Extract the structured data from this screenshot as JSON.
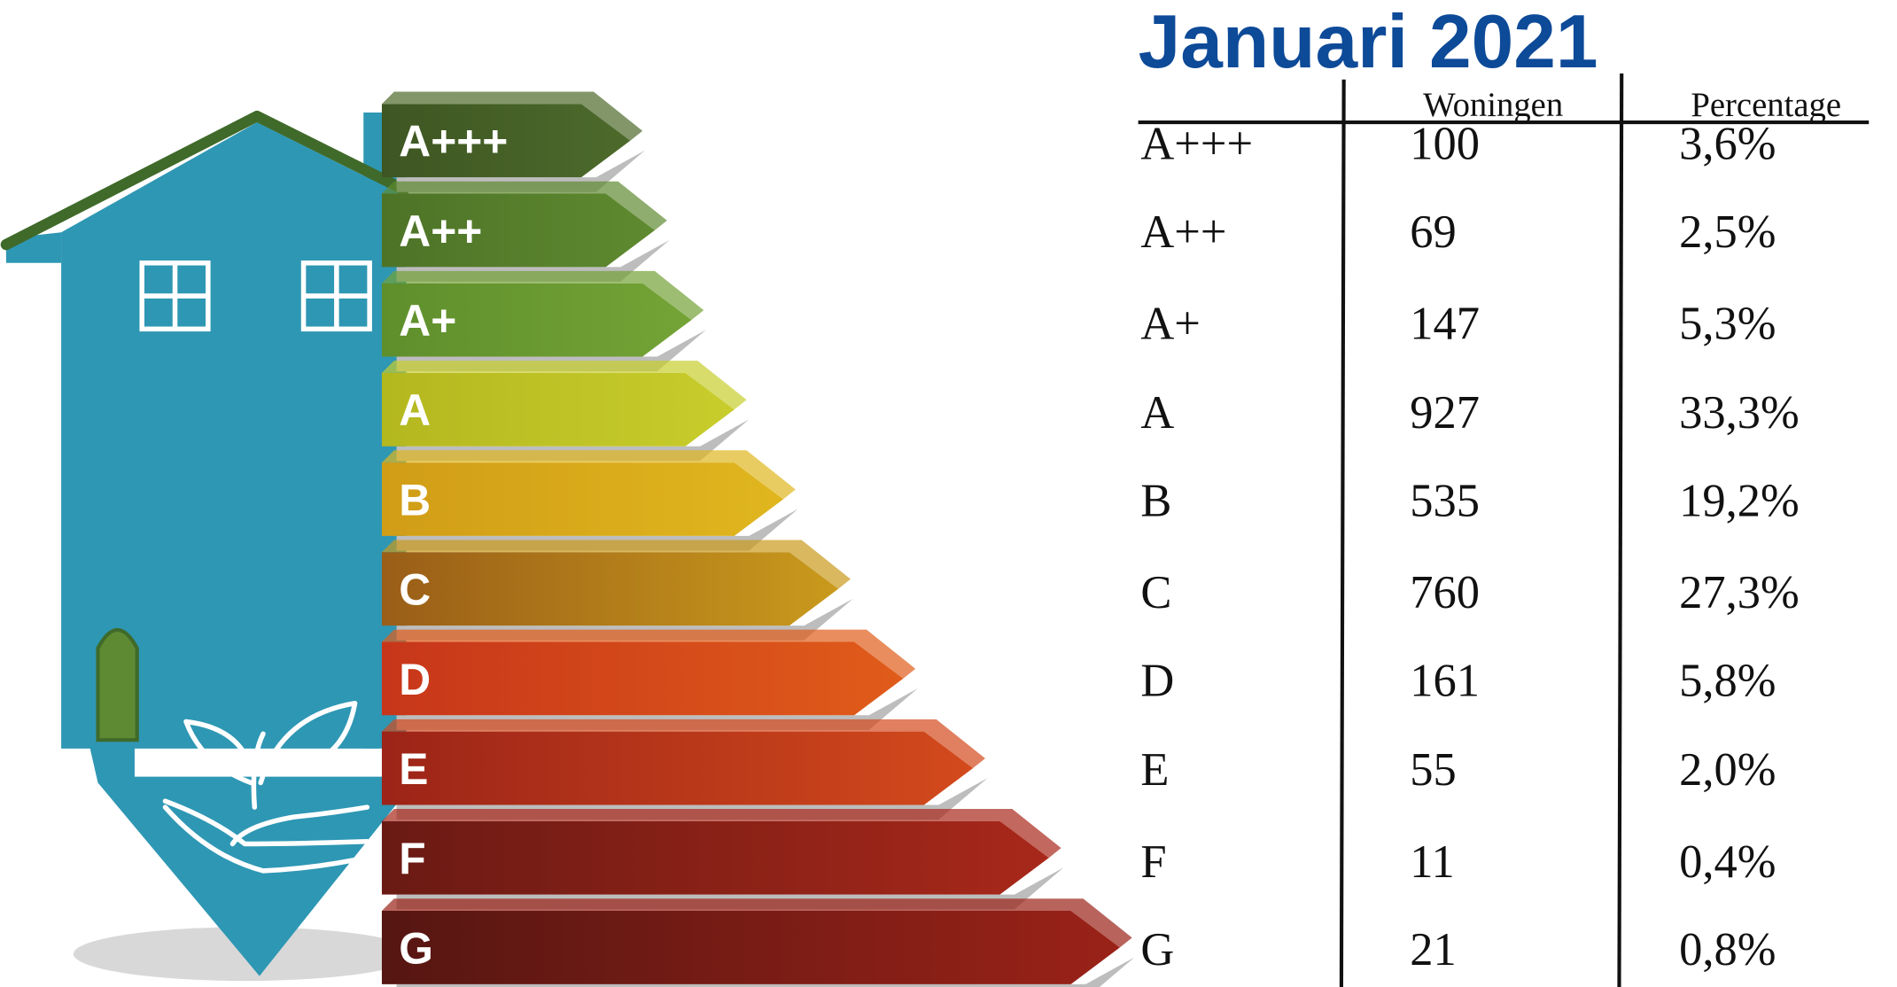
{
  "title": "Januari 2021",
  "table": {
    "headers": [
      "Woningen",
      "Percentage"
    ],
    "rows": [
      [
        "A+++",
        "100",
        "3,6%"
      ],
      [
        "A++",
        "69",
        "2,5%"
      ],
      [
        "A+",
        "147",
        "5,3%"
      ],
      [
        "A",
        "927",
        "33,3%"
      ],
      [
        "B",
        "535",
        "19,2%"
      ],
      [
        "C",
        "760",
        "27,3%"
      ],
      [
        "D",
        "161",
        "5,8%"
      ],
      [
        "E",
        "55",
        "2,0%"
      ],
      [
        "F",
        "11",
        "0,4%"
      ],
      [
        "G",
        "21",
        "0,8%"
      ]
    ]
  }
}
